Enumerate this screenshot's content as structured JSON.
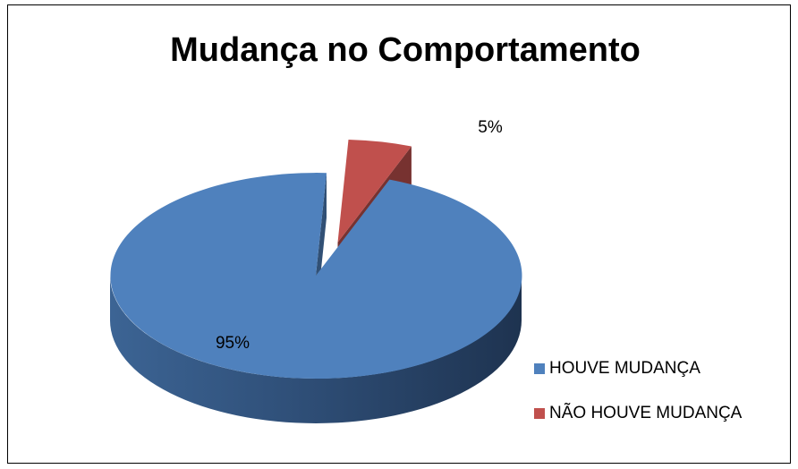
{
  "chart_data": {
    "type": "pie",
    "title": "Mudança no Comportamento",
    "categories": [
      "HOUVE MUDANÇA",
      "NÃO HOUVE MUDANÇA"
    ],
    "values": [
      95,
      5
    ],
    "value_labels": [
      "95%",
      "5%"
    ],
    "colors": [
      "#4f81bd",
      "#c0504d"
    ],
    "legend": "right"
  }
}
